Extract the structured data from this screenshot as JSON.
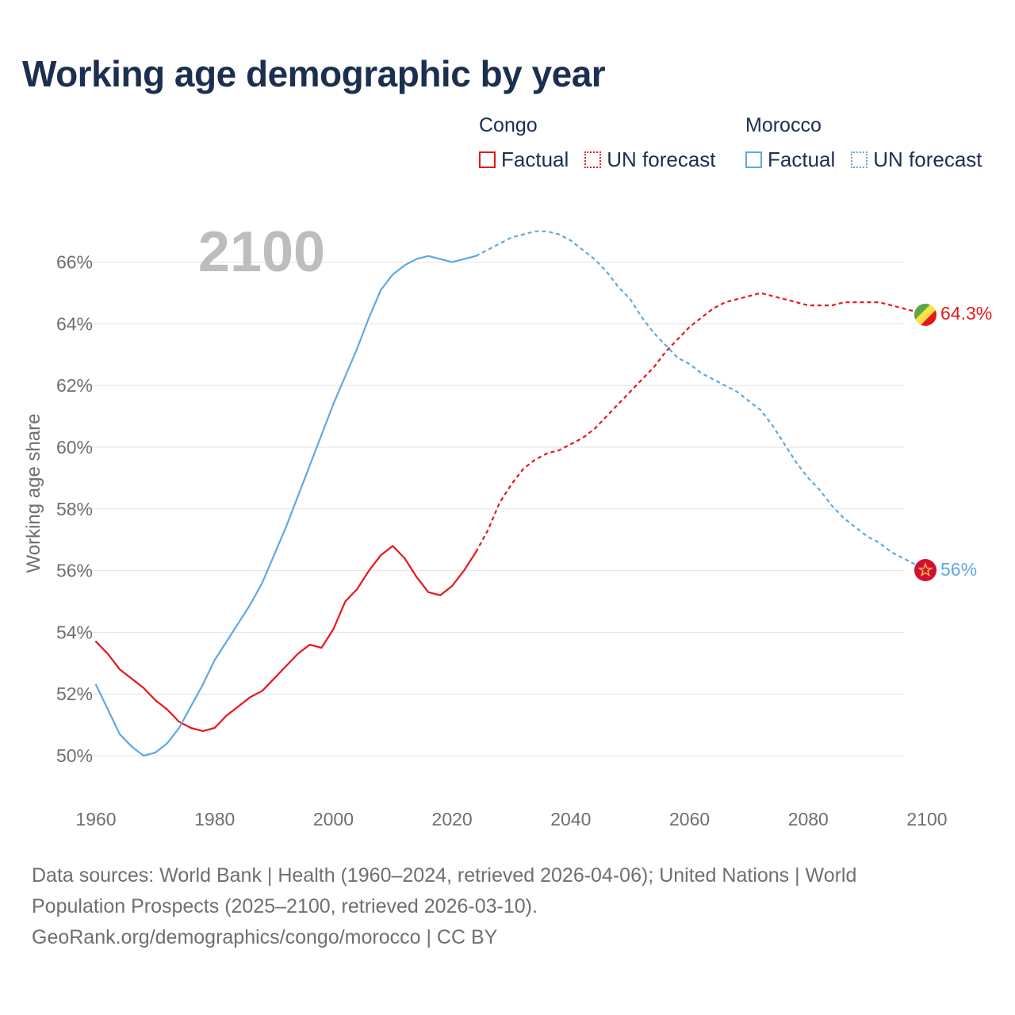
{
  "title": "Working age demographic by year",
  "legend": {
    "congo": {
      "name": "Congo",
      "factual": "Factual",
      "forecast": "UN forecast",
      "color": "#e8161a"
    },
    "morocco": {
      "name": "Morocco",
      "factual": "Factual",
      "forecast": "UN forecast",
      "color": "#5fa8e4"
    }
  },
  "year_label": "2100",
  "footer": {
    "line1": "Data sources: World Bank | Health (1960–2024, retrieved 2026-04-06); United Nations | World",
    "line2": "Population Prospects (2025–2100, retrieved 2026-03-10).",
    "line3": "GeoRank.org/demographics/congo/morocco | CC BY"
  },
  "chart_data": {
    "type": "line",
    "title": "Working age demographic by year",
    "ylabel": "Working age share",
    "xlabel": "",
    "xlim": [
      1960,
      2100
    ],
    "ylim": [
      49,
      67.5
    ],
    "x_ticks": [
      1960,
      1980,
      2000,
      2020,
      2040,
      2060,
      2080,
      2100
    ],
    "y_ticks": [
      50,
      52,
      54,
      56,
      58,
      60,
      62,
      64,
      66
    ],
    "y_tick_suffix": "%",
    "factual_range": [
      1960,
      2024
    ],
    "forecast_range": [
      2024,
      2100
    ],
    "series": [
      {
        "name": "Congo",
        "color": "#e8161a",
        "end_label": "64.3%",
        "points": [
          [
            1960,
            53.7
          ],
          [
            1962,
            53.3
          ],
          [
            1964,
            52.8
          ],
          [
            1966,
            52.5
          ],
          [
            1968,
            52.2
          ],
          [
            1970,
            51.8
          ],
          [
            1972,
            51.5
          ],
          [
            1974,
            51.1
          ],
          [
            1976,
            50.9
          ],
          [
            1978,
            50.8
          ],
          [
            1980,
            50.9
          ],
          [
            1982,
            51.3
          ],
          [
            1984,
            51.6
          ],
          [
            1986,
            51.9
          ],
          [
            1988,
            52.1
          ],
          [
            1990,
            52.5
          ],
          [
            1992,
            52.9
          ],
          [
            1994,
            53.3
          ],
          [
            1996,
            53.6
          ],
          [
            1998,
            53.5
          ],
          [
            2000,
            54.1
          ],
          [
            2002,
            55.0
          ],
          [
            2004,
            55.4
          ],
          [
            2006,
            56.0
          ],
          [
            2008,
            56.5
          ],
          [
            2010,
            56.8
          ],
          [
            2012,
            56.4
          ],
          [
            2014,
            55.8
          ],
          [
            2016,
            55.3
          ],
          [
            2018,
            55.2
          ],
          [
            2020,
            55.5
          ],
          [
            2022,
            56.0
          ],
          [
            2024,
            56.6
          ],
          [
            2026,
            57.3
          ],
          [
            2028,
            58.2
          ],
          [
            2030,
            58.8
          ],
          [
            2032,
            59.3
          ],
          [
            2034,
            59.6
          ],
          [
            2036,
            59.8
          ],
          [
            2038,
            59.9
          ],
          [
            2040,
            60.1
          ],
          [
            2042,
            60.3
          ],
          [
            2044,
            60.6
          ],
          [
            2046,
            61.0
          ],
          [
            2048,
            61.4
          ],
          [
            2050,
            61.8
          ],
          [
            2052,
            62.2
          ],
          [
            2054,
            62.6
          ],
          [
            2056,
            63.1
          ],
          [
            2058,
            63.5
          ],
          [
            2060,
            63.9
          ],
          [
            2062,
            64.2
          ],
          [
            2064,
            64.5
          ],
          [
            2066,
            64.7
          ],
          [
            2068,
            64.8
          ],
          [
            2070,
            64.9
          ],
          [
            2072,
            65.0
          ],
          [
            2074,
            64.9
          ],
          [
            2076,
            64.8
          ],
          [
            2078,
            64.7
          ],
          [
            2080,
            64.6
          ],
          [
            2082,
            64.6
          ],
          [
            2084,
            64.6
          ],
          [
            2086,
            64.7
          ],
          [
            2088,
            64.7
          ],
          [
            2090,
            64.7
          ],
          [
            2092,
            64.7
          ],
          [
            2094,
            64.6
          ],
          [
            2096,
            64.5
          ],
          [
            2098,
            64.4
          ],
          [
            2100,
            64.3
          ]
        ]
      },
      {
        "name": "Morocco",
        "color": "#5fa8e4",
        "end_label": "56%",
        "points": [
          [
            1960,
            52.3
          ],
          [
            1962,
            51.5
          ],
          [
            1964,
            50.7
          ],
          [
            1966,
            50.3
          ],
          [
            1968,
            50.0
          ],
          [
            1970,
            50.1
          ],
          [
            1972,
            50.4
          ],
          [
            1974,
            50.9
          ],
          [
            1976,
            51.6
          ],
          [
            1978,
            52.3
          ],
          [
            1980,
            53.1
          ],
          [
            1982,
            53.7
          ],
          [
            1984,
            54.3
          ],
          [
            1986,
            54.9
          ],
          [
            1988,
            55.6
          ],
          [
            1990,
            56.5
          ],
          [
            1992,
            57.4
          ],
          [
            1994,
            58.4
          ],
          [
            1996,
            59.4
          ],
          [
            1998,
            60.4
          ],
          [
            2000,
            61.4
          ],
          [
            2002,
            62.3
          ],
          [
            2004,
            63.2
          ],
          [
            2006,
            64.2
          ],
          [
            2008,
            65.1
          ],
          [
            2010,
            65.6
          ],
          [
            2012,
            65.9
          ],
          [
            2014,
            66.1
          ],
          [
            2016,
            66.2
          ],
          [
            2018,
            66.1
          ],
          [
            2020,
            66.0
          ],
          [
            2022,
            66.1
          ],
          [
            2024,
            66.2
          ],
          [
            2026,
            66.4
          ],
          [
            2028,
            66.6
          ],
          [
            2030,
            66.8
          ],
          [
            2032,
            66.9
          ],
          [
            2034,
            67.0
          ],
          [
            2036,
            67.0
          ],
          [
            2038,
            66.9
          ],
          [
            2040,
            66.7
          ],
          [
            2042,
            66.4
          ],
          [
            2044,
            66.1
          ],
          [
            2046,
            65.7
          ],
          [
            2048,
            65.2
          ],
          [
            2050,
            64.8
          ],
          [
            2052,
            64.2
          ],
          [
            2054,
            63.7
          ],
          [
            2056,
            63.3
          ],
          [
            2058,
            62.9
          ],
          [
            2060,
            62.7
          ],
          [
            2062,
            62.4
          ],
          [
            2064,
            62.2
          ],
          [
            2066,
            62.0
          ],
          [
            2068,
            61.8
          ],
          [
            2070,
            61.5
          ],
          [
            2072,
            61.2
          ],
          [
            2074,
            60.7
          ],
          [
            2076,
            60.1
          ],
          [
            2078,
            59.5
          ],
          [
            2080,
            59.0
          ],
          [
            2082,
            58.6
          ],
          [
            2084,
            58.1
          ],
          [
            2086,
            57.7
          ],
          [
            2088,
            57.4
          ],
          [
            2090,
            57.1
          ],
          [
            2092,
            56.9
          ],
          [
            2094,
            56.6
          ],
          [
            2096,
            56.4
          ],
          [
            2098,
            56.2
          ],
          [
            2100,
            56.0
          ]
        ]
      }
    ]
  }
}
